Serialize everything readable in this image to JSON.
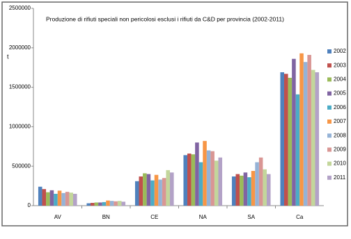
{
  "chart_data": {
    "type": "bar",
    "title": "Produzione di rifiuti speciali non pericolosi esclusi i rifiuti da C&D per provincia (2002-2011)",
    "y_label": "t",
    "categories": [
      "AV",
      "BN",
      "CE",
      "NA",
      "SA",
      "Ca"
    ],
    "series": [
      {
        "name": "2002",
        "color": "#4f81bd",
        "values": [
          240000,
          30000,
          310000,
          640000,
          370000,
          1690000
        ]
      },
      {
        "name": "2003",
        "color": "#c0504d",
        "values": [
          210000,
          35000,
          370000,
          660000,
          400000,
          1670000
        ]
      },
      {
        "name": "2004",
        "color": "#9bbb59",
        "values": [
          170000,
          40000,
          410000,
          650000,
          380000,
          1620000
        ]
      },
      {
        "name": "2005",
        "color": "#8064a2",
        "values": [
          195000,
          40000,
          400000,
          800000,
          420000,
          1860000
        ]
      },
      {
        "name": "2006",
        "color": "#4bacc6",
        "values": [
          150000,
          45000,
          320000,
          550000,
          360000,
          1410000
        ]
      },
      {
        "name": "2007",
        "color": "#f79646",
        "values": [
          190000,
          65000,
          390000,
          820000,
          440000,
          1930000
        ]
      },
      {
        "name": "2008",
        "color": "#95b3d7",
        "values": [
          160000,
          60000,
          330000,
          700000,
          550000,
          1820000
        ]
      },
      {
        "name": "2009",
        "color": "#d99694",
        "values": [
          175000,
          55000,
          350000,
          690000,
          610000,
          1910000
        ]
      },
      {
        "name": "2010",
        "color": "#c3d69b",
        "values": [
          165000,
          60000,
          450000,
          570000,
          460000,
          1720000
        ]
      },
      {
        "name": "2011",
        "color": "#b3a2c7",
        "values": [
          150000,
          50000,
          420000,
          610000,
          400000,
          1690000
        ]
      }
    ],
    "ylim": [
      0,
      2500000
    ],
    "yticks": [
      0,
      500000,
      1000000,
      1500000,
      2000000,
      2500000
    ],
    "legend": "right"
  }
}
